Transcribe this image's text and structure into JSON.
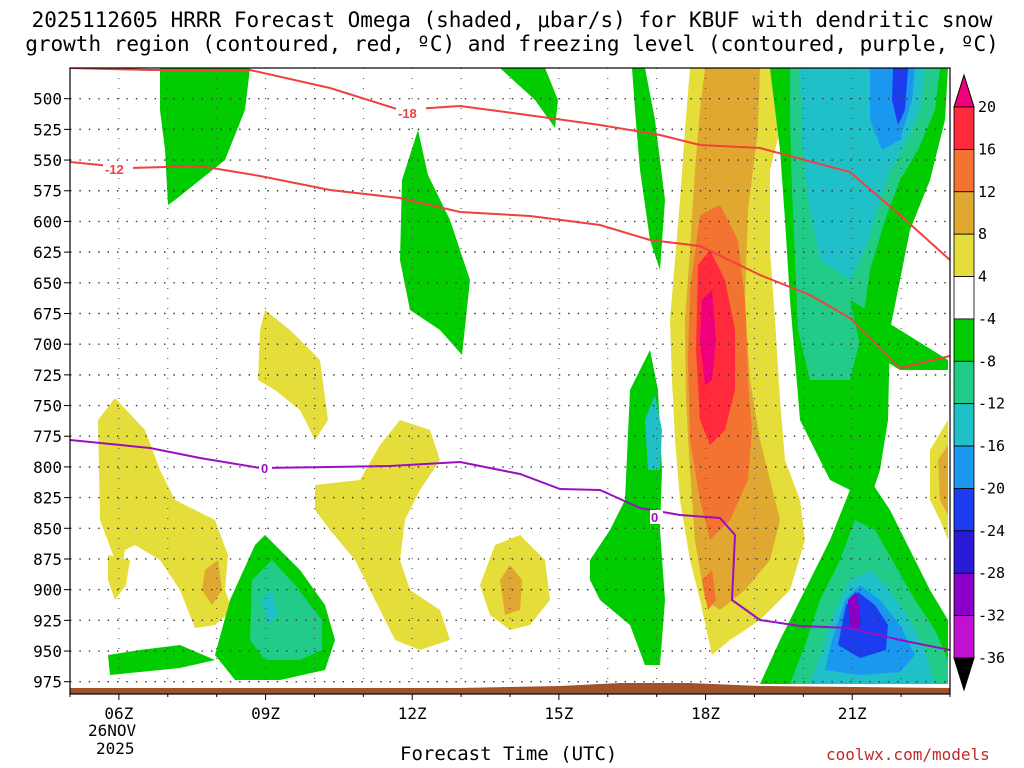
{
  "title": {
    "line1": "2025112605 HRRR Forecast Omega (shaded, μbar/s) for KBUF with dendritic snow",
    "line2": "growth region (contoured, red, ºC) and freezing level (contoured, purple, ºC)"
  },
  "credit": "coolwx.com/models",
  "chart_data": {
    "type": "heatmap",
    "title": "2025112605 HRRR Forecast Omega (shaded, μbar/s) for KBUF with dendritic snow growth region (contoured, red, ºC) and freezing level (contoured, purple, ºC)",
    "xlabel": "Forecast Time (UTC)",
    "ylabel": "",
    "x_ticks": [
      "06Z",
      "09Z",
      "12Z",
      "15Z",
      "18Z",
      "21Z"
    ],
    "x_sublabels": [
      "26NOV",
      "2025"
    ],
    "x_hours": [
      6,
      9,
      12,
      15,
      18,
      21
    ],
    "xlim": [
      5,
      23
    ],
    "y_ticks": [
      500,
      525,
      550,
      575,
      600,
      625,
      650,
      675,
      700,
      725,
      750,
      775,
      800,
      825,
      850,
      875,
      900,
      925,
      950,
      975
    ],
    "ylim": [
      475,
      985
    ],
    "colorbar": {
      "levels": [
        20,
        16,
        12,
        8,
        4,
        -4,
        -8,
        -12,
        -16,
        -20,
        -24,
        -28,
        -32,
        -36
      ],
      "colors": [
        "#ff2a3c",
        "#f27430",
        "#e0a830",
        "#e5dd3a",
        "#ffffff",
        "#00cc00",
        "#22cc88",
        "#20c0c8",
        "#1a98f0",
        "#1c3cf0",
        "#2a1ad8",
        "#8a00c8",
        "#c010d0",
        "#a8a8a8"
      ],
      "top_arrow_color": "#f0007a",
      "bottom_arrow_color": "#000000"
    },
    "contours": {
      "dendritic": {
        "color": "#f04040",
        "labels": [
          "-18",
          "-12"
        ]
      },
      "freezing": {
        "color": "#9a10c0",
        "labels": [
          "0",
          "0"
        ]
      }
    }
  }
}
